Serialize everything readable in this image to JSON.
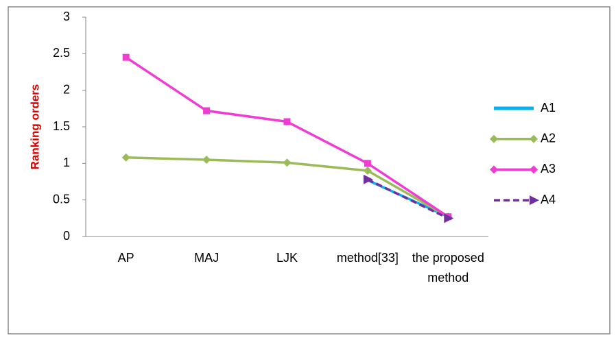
{
  "chart_data": {
    "type": "line",
    "y_label": "Ranking orders",
    "categories": [
      "AP",
      "MAJ",
      "LJK",
      "method[33]",
      "the proposed method"
    ],
    "series": [
      {
        "name": "A1",
        "color": "#00b0f0",
        "marker": "none",
        "dashed": false,
        "values": [
          null,
          null,
          null,
          0.77,
          0.27
        ]
      },
      {
        "name": "A2",
        "color": "#9bbb59",
        "marker": "diamond",
        "dashed": false,
        "values": [
          1.08,
          1.05,
          1.01,
          0.9,
          0.27
        ]
      },
      {
        "name": "A3",
        "color": "#f03cd2",
        "marker": "square",
        "dashed": false,
        "values": [
          2.45,
          1.72,
          1.57,
          1.0,
          0.27
        ]
      },
      {
        "name": "A4",
        "color": "#7030a0",
        "marker": "triangle",
        "dashed": true,
        "values": [
          null,
          null,
          null,
          0.78,
          0.25
        ]
      }
    ],
    "ylim": [
      0,
      3
    ],
    "yticks": [
      0,
      0.5,
      1,
      1.5,
      2,
      2.5,
      3
    ],
    "grid": false,
    "legend": "right"
  }
}
